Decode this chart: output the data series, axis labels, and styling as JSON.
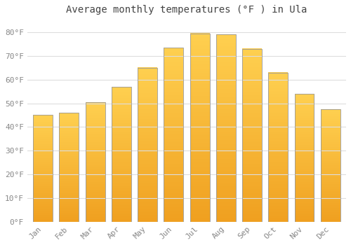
{
  "title": "Average monthly temperatures (°F ) in Ula",
  "months": [
    "Jan",
    "Feb",
    "Mar",
    "Apr",
    "May",
    "Jun",
    "Jul",
    "Aug",
    "Sep",
    "Oct",
    "Nov",
    "Dec"
  ],
  "values": [
    45,
    46,
    50.5,
    57,
    65,
    73.5,
    79.5,
    79,
    73,
    63,
    54,
    47.5
  ],
  "bar_color_bottom": "#F0A020",
  "bar_color_top": "#FFD050",
  "bar_edge_color": "#999999",
  "background_color": "#ffffff",
  "grid_color": "#dddddd",
  "ylim": [
    0,
    85
  ],
  "yticks": [
    0,
    10,
    20,
    30,
    40,
    50,
    60,
    70,
    80
  ],
  "ytick_labels": [
    "0°F",
    "10°F",
    "20°F",
    "30°F",
    "40°F",
    "50°F",
    "60°F",
    "70°F",
    "80°F"
  ],
  "title_fontsize": 10,
  "tick_fontsize": 8,
  "title_color": "#444444",
  "tick_color": "#888888",
  "bar_width": 0.75
}
